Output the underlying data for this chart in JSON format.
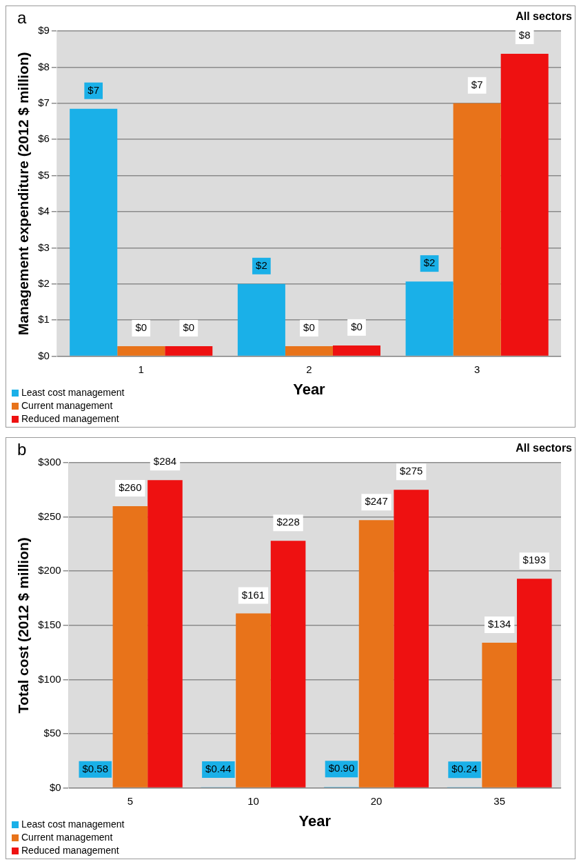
{
  "chart_data": [
    {
      "type": "bar",
      "annotations": [
        "a",
        "All sectors"
      ],
      "ylabel": "Management expenditure (2012 $ million)",
      "xlabel": "Year",
      "categories": [
        "1",
        "2",
        "3"
      ],
      "series": [
        {
          "name": "Least cost management",
          "color": "#1ab0e8",
          "values": [
            6.85,
            2.0,
            2.07
          ],
          "value_labels": [
            "$7",
            "$2",
            "$2"
          ]
        },
        {
          "name": "Current management",
          "color": "#e8731a",
          "values": [
            0.28,
            0.28,
            7.0
          ],
          "value_labels": [
            "$0",
            "$0",
            "$7"
          ]
        },
        {
          "name": "Reduced management",
          "color": "#ee1111",
          "values": [
            0.28,
            0.3,
            8.37
          ],
          "value_labels": [
            "$0",
            "$0",
            "$8"
          ]
        }
      ],
      "ylim": [
        0,
        9
      ],
      "yticks": [
        {
          "value": 0,
          "label": "$0"
        },
        {
          "value": 1,
          "label": "$1"
        },
        {
          "value": 2,
          "label": "$2"
        },
        {
          "value": 3,
          "label": "$3"
        },
        {
          "value": 4,
          "label": "$4"
        },
        {
          "value": 5,
          "label": "$5"
        },
        {
          "value": 6,
          "label": "$6"
        },
        {
          "value": 7,
          "label": "$7"
        },
        {
          "value": 8,
          "label": "$8"
        },
        {
          "value": 9,
          "label": "$9"
        }
      ],
      "grid": "y",
      "legend": "bottom left"
    },
    {
      "type": "bar",
      "annotations": [
        "b",
        "All sectors"
      ],
      "ylabel": "Total cost (2012 $ million)",
      "xlabel": "Year",
      "categories": [
        "5",
        "10",
        "20",
        "35"
      ],
      "series": [
        {
          "name": "Least cost management",
          "color": "#1ab0e8",
          "values": [
            0.58,
            0.44,
            0.9,
            0.24
          ],
          "value_labels": [
            "$0.58",
            "$0.44",
            "$0.90",
            "$0.24"
          ]
        },
        {
          "name": "Current management",
          "color": "#e8731a",
          "values": [
            260,
            161,
            247,
            134
          ],
          "value_labels": [
            "$260",
            "$161",
            "$247",
            "$134"
          ]
        },
        {
          "name": "Reduced management",
          "color": "#ee1111",
          "values": [
            284,
            228,
            275,
            193
          ],
          "value_labels": [
            "$284",
            "$228",
            "$275",
            "$193"
          ]
        }
      ],
      "ylim": [
        0,
        300
      ],
      "yticks": [
        {
          "value": 0,
          "label": "$0"
        },
        {
          "value": 50,
          "label": "$50"
        },
        {
          "value": 100,
          "label": "$100"
        },
        {
          "value": 150,
          "label": "$150"
        },
        {
          "value": 200,
          "label": "$200"
        },
        {
          "value": 250,
          "label": "$250"
        },
        {
          "value": 300,
          "label": "$300"
        }
      ],
      "grid": "y",
      "legend": "bottom left"
    }
  ]
}
